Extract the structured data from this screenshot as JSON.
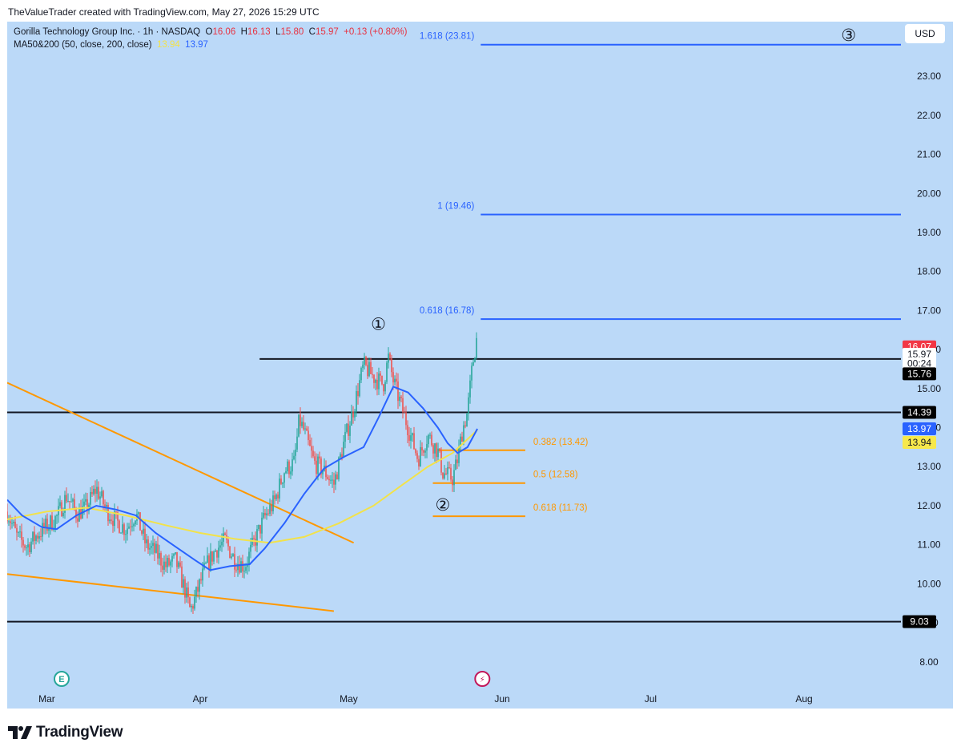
{
  "caption": "TheValueTrader created with TradingView.com, May 27, 2026 15:29 UTC",
  "legend": {
    "symbol": "Gorilla Technology Group Inc. · 1h · NASDAQ",
    "o_label": "O",
    "o_value": "16.06",
    "h_label": "H",
    "h_value": "16.13",
    "l_label": "L",
    "l_value": "15.80",
    "c_label": "C",
    "c_value": "15.97",
    "change": "+0.13 (+0.80%)",
    "ma_label": "MA50&200 (50, close, 200, close)",
    "ma200_value": "13.94",
    "ma50_value": "13.97"
  },
  "currency_button": "USD",
  "footer_brand": "TradingView",
  "colors": {
    "background": "#bbd9f8",
    "up": "#26a69a",
    "down": "#ef5350",
    "ma50": "#2962ff",
    "ma200": "#f2e24a",
    "trendline": "#ff9800",
    "fib_ext": "#2962ff",
    "fib_retr": "#ff9800"
  },
  "chart_data": {
    "type": "candlestick",
    "title": "Gorilla Technology Group Inc. · 1h · NASDAQ",
    "y_ticks": [
      "8.00",
      "9.00",
      "10.00",
      "11.00",
      "12.00",
      "13.00",
      "14.00",
      "15.00",
      "16.00",
      "17.00",
      "18.00",
      "19.00",
      "20.00",
      "21.00",
      "22.00",
      "23.00"
    ],
    "x_ticks": [
      {
        "label": "Mar",
        "date": "2026-03-01"
      },
      {
        "label": "Apr",
        "date": "2026-04-01"
      },
      {
        "label": "May",
        "date": "2026-05-01"
      },
      {
        "label": "Jun",
        "date": "2026-06-01"
      },
      {
        "label": "Jul",
        "date": "2026-07-01"
      },
      {
        "label": "Aug",
        "date": "2026-08-01"
      }
    ],
    "x_range": [
      "2026-02-21",
      "2026-08-12"
    ],
    "y_range": [
      7.4,
      24.4
    ],
    "grid": false,
    "price_path": [
      {
        "date": "2026-02-21",
        "price": 11.85
      },
      {
        "date": "2026-02-23",
        "price": 11.2
      },
      {
        "date": "2026-02-25",
        "price": 10.95
      },
      {
        "date": "2026-02-27",
        "price": 11.25
      },
      {
        "date": "2026-03-03",
        "price": 11.7
      },
      {
        "date": "2026-03-05",
        "price": 12.25
      },
      {
        "date": "2026-03-07",
        "price": 11.8
      },
      {
        "date": "2026-03-09",
        "price": 11.95
      },
      {
        "date": "2026-03-11",
        "price": 12.45
      },
      {
        "date": "2026-03-13",
        "price": 11.9
      },
      {
        "date": "2026-03-15",
        "price": 11.6
      },
      {
        "date": "2026-03-17",
        "price": 11.4
      },
      {
        "date": "2026-03-19",
        "price": 11.8
      },
      {
        "date": "2026-03-21",
        "price": 11.0
      },
      {
        "date": "2026-03-23",
        "price": 10.8
      },
      {
        "date": "2026-03-25",
        "price": 10.45
      },
      {
        "date": "2026-03-27",
        "price": 10.6
      },
      {
        "date": "2026-03-29",
        "price": 9.8
      },
      {
        "date": "2026-03-30",
        "price": 9.3
      },
      {
        "date": "2026-03-31",
        "price": 9.65
      },
      {
        "date": "2026-04-02",
        "price": 10.4
      },
      {
        "date": "2026-04-04",
        "price": 10.85
      },
      {
        "date": "2026-04-06",
        "price": 11.1
      },
      {
        "date": "2026-04-08",
        "price": 10.6
      },
      {
        "date": "2026-04-10",
        "price": 10.45
      },
      {
        "date": "2026-04-12",
        "price": 11.1
      },
      {
        "date": "2026-04-14",
        "price": 11.7
      },
      {
        "date": "2026-04-16",
        "price": 12.1
      },
      {
        "date": "2026-04-18",
        "price": 12.9
      },
      {
        "date": "2026-04-20",
        "price": 13.1
      },
      {
        "date": "2026-04-21",
        "price": 14.2
      },
      {
        "date": "2026-04-22",
        "price": 13.9
      },
      {
        "date": "2026-04-24",
        "price": 13.1
      },
      {
        "date": "2026-04-26",
        "price": 12.9
      },
      {
        "date": "2026-04-28",
        "price": 12.55
      },
      {
        "date": "2026-04-30",
        "price": 13.6
      },
      {
        "date": "2026-05-02",
        "price": 14.5
      },
      {
        "date": "2026-05-04",
        "price": 15.6
      },
      {
        "date": "2026-05-06",
        "price": 15.3
      },
      {
        "date": "2026-05-08",
        "price": 15.1
      },
      {
        "date": "2026-05-09",
        "price": 15.8
      },
      {
        "date": "2026-05-10",
        "price": 15.2
      },
      {
        "date": "2026-05-12",
        "price": 14.4
      },
      {
        "date": "2026-05-14",
        "price": 13.6
      },
      {
        "date": "2026-05-15",
        "price": 13.2
      },
      {
        "date": "2026-05-17",
        "price": 13.8
      },
      {
        "date": "2026-05-19",
        "price": 13.4
      },
      {
        "date": "2026-05-20",
        "price": 12.85
      },
      {
        "date": "2026-05-22",
        "price": 12.7
      },
      {
        "date": "2026-05-23",
        "price": 13.2
      },
      {
        "date": "2026-05-24",
        "price": 13.95
      },
      {
        "date": "2026-05-25",
        "price": 14.4
      },
      {
        "date": "2026-05-26",
        "price": 15.6
      },
      {
        "date": "2026-05-27",
        "price": 16.4
      },
      {
        "date": "2026-05-27",
        "price": 15.97
      }
    ],
    "ma50": [
      {
        "date": "2026-02-21",
        "value": 12.15
      },
      {
        "date": "2026-02-24",
        "value": 11.75
      },
      {
        "date": "2026-02-28",
        "value": 11.45
      },
      {
        "date": "2026-03-03",
        "value": 11.4
      },
      {
        "date": "2026-03-07",
        "value": 11.75
      },
      {
        "date": "2026-03-11",
        "value": 12.0
      },
      {
        "date": "2026-03-15",
        "value": 11.9
      },
      {
        "date": "2026-03-19",
        "value": 11.75
      },
      {
        "date": "2026-03-23",
        "value": 11.3
      },
      {
        "date": "2026-03-27",
        "value": 10.95
      },
      {
        "date": "2026-03-31",
        "value": 10.6
      },
      {
        "date": "2026-04-03",
        "value": 10.35
      },
      {
        "date": "2026-04-07",
        "value": 10.45
      },
      {
        "date": "2026-04-11",
        "value": 10.5
      },
      {
        "date": "2026-04-14",
        "value": 10.9
      },
      {
        "date": "2026-04-18",
        "value": 11.55
      },
      {
        "date": "2026-04-22",
        "value": 12.3
      },
      {
        "date": "2026-04-26",
        "value": 12.95
      },
      {
        "date": "2026-04-30",
        "value": 13.25
      },
      {
        "date": "2026-05-04",
        "value": 13.5
      },
      {
        "date": "2026-05-07",
        "value": 14.25
      },
      {
        "date": "2026-05-10",
        "value": 15.05
      },
      {
        "date": "2026-05-13",
        "value": 14.9
      },
      {
        "date": "2026-05-16",
        "value": 14.5
      },
      {
        "date": "2026-05-19",
        "value": 14.0
      },
      {
        "date": "2026-05-21",
        "value": 13.6
      },
      {
        "date": "2026-05-23",
        "value": 13.35
      },
      {
        "date": "2026-05-25",
        "value": 13.5
      },
      {
        "date": "2026-05-27",
        "value": 13.97
      }
    ],
    "ma200": [
      {
        "date": "2026-02-21",
        "value": 11.65
      },
      {
        "date": "2026-03-01",
        "value": 11.85
      },
      {
        "date": "2026-03-09",
        "value": 11.95
      },
      {
        "date": "2026-03-17",
        "value": 11.75
      },
      {
        "date": "2026-03-25",
        "value": 11.5
      },
      {
        "date": "2026-04-01",
        "value": 11.3
      },
      {
        "date": "2026-04-08",
        "value": 11.15
      },
      {
        "date": "2026-04-15",
        "value": 11.05
      },
      {
        "date": "2026-04-22",
        "value": 11.2
      },
      {
        "date": "2026-04-29",
        "value": 11.55
      },
      {
        "date": "2026-05-06",
        "value": 12.0
      },
      {
        "date": "2026-05-12",
        "value": 12.55
      },
      {
        "date": "2026-05-17",
        "value": 13.0
      },
      {
        "date": "2026-05-22",
        "value": 13.35
      },
      {
        "date": "2026-05-27",
        "value": 13.94
      }
    ],
    "horizontal_lines": [
      {
        "price": 15.76,
        "start": "2026-04-13",
        "label": "15.76"
      },
      {
        "price": 14.39,
        "start": "2026-02-21",
        "label": "14.39"
      },
      {
        "price": 9.03,
        "start": "2026-02-21",
        "label": "9.03"
      }
    ],
    "trendlines": [
      {
        "from": {
          "date": "2026-02-21",
          "price": 15.15
        },
        "to": {
          "date": "2026-05-02",
          "price": 11.05
        }
      },
      {
        "from": {
          "date": "2026-02-21",
          "price": 10.25
        },
        "to": {
          "date": "2026-04-28",
          "price": 9.3
        }
      }
    ],
    "fib_extension": [
      {
        "label": "0.618 (16.78)",
        "price": 16.78
      },
      {
        "label": "1 (19.46)",
        "price": 19.46
      },
      {
        "label": "1.618 (23.81)",
        "price": 23.81
      }
    ],
    "fib_retracement": [
      {
        "label": "0.382 (13.42)",
        "price": 13.42
      },
      {
        "label": "0.5 (12.58)",
        "price": 12.58
      },
      {
        "label": "0.618 (11.73)",
        "price": 11.73
      }
    ],
    "wave_labels": [
      {
        "label": "①",
        "date": "2026-05-07",
        "price": 16.65
      },
      {
        "label": "②",
        "date": "2026-05-20",
        "price": 12.02
      },
      {
        "label": "③",
        "date": "2026-08-10",
        "price": 24.05
      }
    ],
    "price_tags": [
      {
        "label": "16.07",
        "price": 16.07,
        "kind": "high"
      },
      {
        "label": "15.97",
        "price": 15.88,
        "kind": "last"
      },
      {
        "label": "00:24",
        "price": 15.64,
        "kind": "countdown"
      },
      {
        "label": "15.76",
        "price": 15.38,
        "kind": "line"
      },
      {
        "label": "14.39",
        "price": 14.39,
        "kind": "line"
      },
      {
        "label": "13.97",
        "price": 13.97,
        "kind": "ma50"
      },
      {
        "label": "13.94",
        "price": 13.62,
        "kind": "ma200"
      },
      {
        "label": "9.03",
        "price": 9.03,
        "kind": "line"
      }
    ],
    "events": [
      {
        "type": "earnings",
        "label": "E",
        "date": "2026-03-04"
      },
      {
        "type": "dividend-split",
        "label": "⚡",
        "date": "2026-05-28"
      }
    ]
  }
}
